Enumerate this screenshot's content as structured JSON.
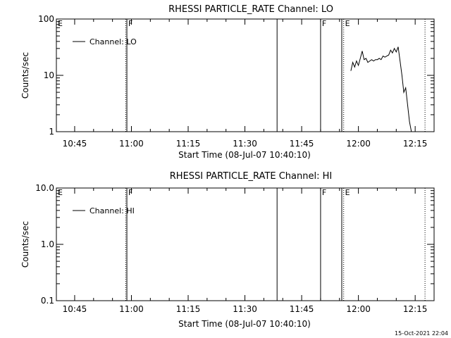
{
  "footer": {
    "timestamp": "15-Oct-2021 22:04"
  },
  "chart_data": [
    {
      "type": "line",
      "title": "RHESSI PARTICLE_RATE Channel: LO",
      "xlabel": "Start Time (08-Jul-07 10:40:10)",
      "ylabel": "Counts/sec",
      "yscale": "log",
      "xlim": [
        "10:40:10",
        "12:20:00"
      ],
      "ylim": [
        1,
        100
      ],
      "xticks": [
        "10:45",
        "11:00",
        "11:15",
        "11:30",
        "11:45",
        "12:00",
        "12:15"
      ],
      "yticks": [
        1,
        10,
        100
      ],
      "ytick_labels": [
        "1",
        "10",
        "100"
      ],
      "grid": false,
      "legend_position": "top-left",
      "series": [
        {
          "name": "Channel: LO",
          "x": [
            "11:58:00",
            "11:58:30",
            "11:59:00",
            "11:59:30",
            "12:00:00",
            "12:00:30",
            "12:01:00",
            "12:01:30",
            "12:02:00",
            "12:02:30",
            "12:03:00",
            "12:03:30",
            "12:04:00",
            "12:04:30",
            "12:05:00",
            "12:05:30",
            "12:06:00",
            "12:06:30",
            "12:07:00",
            "12:07:30",
            "12:08:00",
            "12:08:30",
            "12:09:00",
            "12:09:30",
            "12:10:00",
            "12:10:30",
            "12:11:00",
            "12:11:30",
            "12:12:00",
            "12:12:30",
            "12:13:00",
            "12:13:30",
            "12:14:00"
          ],
          "values": [
            12,
            17,
            14,
            18,
            15,
            20,
            27,
            19,
            20,
            17,
            18,
            19,
            18,
            19,
            19,
            20,
            19,
            22,
            21,
            22,
            23,
            28,
            25,
            30,
            26,
            32,
            18,
            10,
            5,
            6,
            3,
            1.5,
            1
          ]
        }
      ],
      "markers": [
        {
          "time": "10:40:10",
          "label": "E",
          "style": "dotted"
        },
        {
          "time": "10:58:30",
          "label": "",
          "style": "dotted"
        },
        {
          "time": "10:58:48",
          "label": "F",
          "style": "solid"
        },
        {
          "time": "11:38:30",
          "label": "",
          "style": "solid"
        },
        {
          "time": "11:50:00",
          "label": "F",
          "style": "solid"
        },
        {
          "time": "11:55:36",
          "label": "",
          "style": "solid"
        },
        {
          "time": "11:56:06",
          "label": "E",
          "style": "dotted"
        },
        {
          "time": "12:17:36",
          "label": "",
          "style": "dotted"
        }
      ]
    },
    {
      "type": "line",
      "title": "RHESSI PARTICLE_RATE Channel: HI",
      "xlabel": "Start Time (08-Jul-07 10:40:10)",
      "ylabel": "Counts/sec",
      "yscale": "log",
      "xlim": [
        "10:40:10",
        "12:20:00"
      ],
      "ylim": [
        0.1,
        10
      ],
      "xticks": [
        "10:45",
        "11:00",
        "11:15",
        "11:30",
        "11:45",
        "12:00",
        "12:15"
      ],
      "yticks": [
        0.1,
        1,
        10
      ],
      "ytick_labels": [
        "0.1",
        "1.0",
        "10.0"
      ],
      "grid": false,
      "legend_position": "top-left",
      "series": [
        {
          "name": "Channel: HI",
          "x": [],
          "values": []
        }
      ],
      "markers": [
        {
          "time": "10:40:10",
          "label": "E",
          "style": "dotted"
        },
        {
          "time": "10:58:30",
          "label": "",
          "style": "dotted"
        },
        {
          "time": "10:58:48",
          "label": "F",
          "style": "solid"
        },
        {
          "time": "11:38:30",
          "label": "",
          "style": "solid"
        },
        {
          "time": "11:50:00",
          "label": "F",
          "style": "solid"
        },
        {
          "time": "11:55:36",
          "label": "",
          "style": "solid"
        },
        {
          "time": "11:56:06",
          "label": "E",
          "style": "dotted"
        },
        {
          "time": "12:17:36",
          "label": "",
          "style": "dotted"
        }
      ]
    }
  ]
}
